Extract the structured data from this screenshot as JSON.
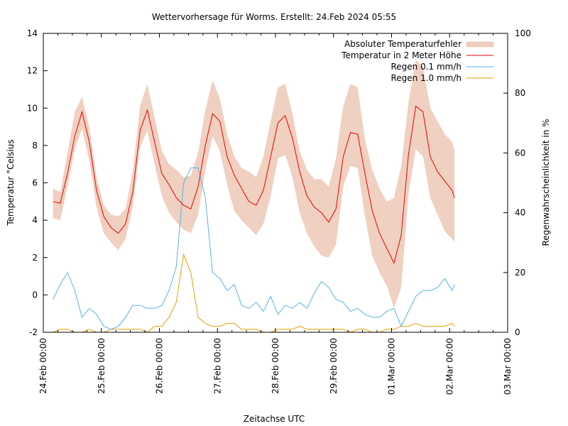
{
  "chart_data": {
    "type": "line",
    "title": "Wettervorhersage für Worms. Erstellt: 24.Feb 2024 05:55",
    "xlabel": "Zeitachse UTC",
    "ylabel": "Temperatur °Celsius",
    "y2label": "Regenwahrscheinlichkeit in %",
    "x_unit": "hours since 24.Feb 00:00 UTC",
    "xlim": [
      0,
      192
    ],
    "ylim": [
      -2,
      14
    ],
    "y2lim": [
      0,
      100
    ],
    "x_ticks": [
      {
        "value": 0,
        "label": "24.Feb 00:00"
      },
      {
        "value": 24,
        "label": "25.Feb 00:00"
      },
      {
        "value": 48,
        "label": "26.Feb 00:00"
      },
      {
        "value": 72,
        "label": "27.Feb 00:00"
      },
      {
        "value": 96,
        "label": "28.Feb 00:00"
      },
      {
        "value": 120,
        "label": "29.Feb 00:00"
      },
      {
        "value": 144,
        "label": "01.Mar 00:00"
      },
      {
        "value": 168,
        "label": "02.Mar 00:00"
      },
      {
        "value": 192,
        "label": "03.Mar 00:00"
      }
    ],
    "x_minor_step": 6,
    "y_ticks": [
      -2,
      0,
      2,
      4,
      6,
      8,
      10,
      12,
      14
    ],
    "y2_ticks": [
      0,
      20,
      40,
      60,
      80,
      100
    ],
    "grid": false,
    "legend_position": "top-right",
    "legend": [
      {
        "label": "Absoluter Temperaturfehler",
        "kind": "band",
        "color": "#f0d0c0"
      },
      {
        "label": "Temperatur in 2 Meter Höhe",
        "kind": "line",
        "color": "#ee0000"
      },
      {
        "label": "Regen 0.1 mm/h",
        "kind": "line",
        "color": "#56b4e9"
      },
      {
        "label": "Regen 1.0 mm/h",
        "kind": "line",
        "color": "#e69f00"
      }
    ],
    "x": [
      4,
      7,
      10,
      13,
      16,
      19,
      22,
      25,
      28,
      31,
      34,
      37,
      40,
      43,
      46,
      49,
      52,
      55,
      58,
      61,
      64,
      67,
      70,
      73,
      76,
      79,
      82,
      85,
      88,
      91,
      94,
      97,
      100,
      103,
      106,
      109,
      112,
      115,
      118,
      121,
      124,
      127,
      130,
      133,
      136,
      139,
      142,
      145,
      148,
      151,
      154,
      157,
      160,
      163,
      166,
      169,
      170
    ],
    "series": [
      {
        "name": "Temperatur in 2 Meter Höhe",
        "axis": "y",
        "color": "#ee0000",
        "values": [
          5.0,
          4.9,
          6.5,
          8.5,
          9.8,
          8.2,
          5.6,
          4.2,
          3.6,
          3.3,
          3.8,
          5.5,
          8.8,
          9.9,
          8.2,
          6.5,
          5.9,
          5.2,
          4.8,
          4.6,
          5.8,
          8.0,
          9.7,
          9.3,
          7.4,
          6.4,
          5.7,
          5.0,
          4.8,
          5.6,
          7.4,
          9.2,
          9.6,
          8.4,
          6.6,
          5.3,
          4.7,
          4.4,
          3.9,
          4.6,
          7.4,
          8.7,
          8.6,
          6.5,
          4.5,
          3.3,
          2.5,
          1.7,
          3.2,
          7.5,
          10.1,
          9.8,
          7.4,
          6.6,
          6.1,
          5.6,
          5.2
        ]
      },
      {
        "name": "Absoluter Temperaturfehler (oben)",
        "axis": "y",
        "color": "#f0d0c0",
        "values": [
          5.7,
          5.5,
          7.6,
          9.8,
          10.6,
          9.0,
          6.3,
          4.8,
          4.3,
          4.2,
          4.6,
          6.6,
          10.1,
          11.3,
          9.5,
          7.7,
          7.0,
          6.7,
          6.3,
          6.4,
          7.6,
          9.9,
          11.5,
          10.5,
          8.6,
          7.4,
          6.8,
          6.6,
          6.3,
          7.4,
          9.3,
          11.1,
          11.3,
          9.7,
          7.7,
          6.7,
          6.2,
          6.2,
          5.8,
          7.3,
          10.1,
          11.3,
          11.1,
          8.3,
          6.7,
          5.7,
          5.0,
          5.2,
          6.9,
          10.3,
          12.6,
          12.2,
          10.0,
          9.3,
          8.6,
          8.2,
          7.7
        ]
      },
      {
        "name": "Absoluter Temperaturfehler (unten)",
        "axis": "y",
        "color": "#f0d0c0",
        "values": [
          4.1,
          4.0,
          5.8,
          7.8,
          8.9,
          7.2,
          4.7,
          3.3,
          2.8,
          2.4,
          3.0,
          4.7,
          7.9,
          8.8,
          7.0,
          5.3,
          4.4,
          3.9,
          3.5,
          3.3,
          4.3,
          6.7,
          8.5,
          7.7,
          5.9,
          4.5,
          4.0,
          3.6,
          3.2,
          3.8,
          5.3,
          7.3,
          7.5,
          6.3,
          4.4,
          3.3,
          2.6,
          2.1,
          2.0,
          2.7,
          5.8,
          6.9,
          6.8,
          4.2,
          2.1,
          1.2,
          0.5,
          -0.7,
          0.4,
          5.4,
          7.8,
          7.4,
          5.2,
          4.3,
          3.4,
          3.0,
          2.8
        ]
      },
      {
        "name": "Regen 0.1 mm/h",
        "axis": "y2",
        "color": "#56b4e9",
        "values": [
          11,
          16,
          20,
          14,
          5,
          8,
          6,
          2,
          1,
          2,
          5,
          9,
          9,
          8,
          8,
          9,
          14,
          22,
          50,
          55,
          55,
          45,
          20,
          18,
          14,
          16,
          9,
          8,
          10,
          7,
          12,
          6,
          9,
          8,
          10,
          8,
          13,
          17,
          15,
          11,
          10,
          7,
          8,
          6,
          5,
          5,
          7,
          8,
          2,
          7,
          12,
          14,
          14,
          15,
          18,
          14,
          16
        ]
      },
      {
        "name": "Regen 1.0 mm/h",
        "axis": "y2",
        "color": "#e69f00",
        "values": [
          0,
          1,
          1,
          0,
          0,
          1,
          0,
          0,
          1,
          1,
          1,
          1,
          1,
          0,
          2,
          2,
          5,
          10,
          26,
          20,
          5,
          3,
          2,
          2,
          3,
          3,
          1,
          1,
          1,
          0,
          0,
          1,
          1,
          1,
          2,
          1,
          1,
          1,
          1,
          1,
          1,
          0,
          1,
          1,
          0,
          0,
          1,
          1,
          2,
          2,
          3,
          2,
          2,
          2,
          2,
          3,
          2
        ]
      }
    ]
  }
}
